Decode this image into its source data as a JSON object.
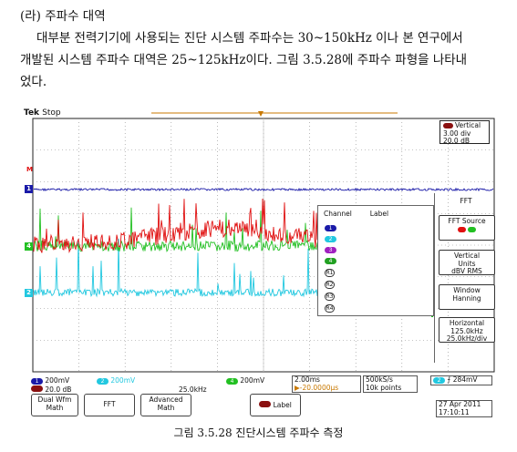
{
  "document": {
    "heading": "(라) 주파수 대역",
    "para1": "대부분 전력기기에 사용되는 진단 시스템 주파수는 30~150kHz 이나 본 연구에서",
    "para2": "개발된 시스템 주파수 대역은 25~125kHz이다. 그림 3.5.28에 주파수 파형을 나타내",
    "para3": "었다.",
    "caption": "그림 3.5.28 진단시스템 주파수 측정"
  },
  "scope": {
    "brand": "Tek",
    "state": "Stop",
    "vertical_box": {
      "title": "Vertical",
      "line1": "3.00 div",
      "line2": "20.0 dB"
    },
    "markers": {
      "m": "M",
      "ch1": "1",
      "ch4": "4",
      "ch2": "2"
    },
    "label_panel": {
      "col1": "Channel",
      "col2": "Label",
      "rows": [
        "1",
        "2",
        "3",
        "4",
        "R1",
        "R2",
        "R3",
        "R4"
      ]
    },
    "fft_menu": {
      "title": "FFT",
      "buttons": [
        {
          "top": "FFT Source",
          "sub": ""
        },
        {
          "top": "Vertical",
          "sub": "Units",
          "sub2": "dBV RMS"
        },
        {
          "top": "Window",
          "sub": "Hanning",
          "sub2": ""
        },
        {
          "top": "Horizontal",
          "sub": "125.0kHz",
          "sub2": "25.0kHz/div"
        }
      ]
    },
    "status": {
      "ch1": "200mV",
      "ch2": "200mV",
      "ch4": "200mV",
      "math_scale": "20.0 dB",
      "math_freq": "25.0kHz",
      "timebase": "2.00ms",
      "trigger_pos": "▶-20.0000µs",
      "sample_rate": "500kS/s",
      "points": "10k points",
      "trig_ch": "2",
      "trig_level": "284mV",
      "date": "27 Apr 2011",
      "time": "17:10:11"
    },
    "softkeys": {
      "dual": "Dual Wfm",
      "dual_sub": "Math",
      "fft": "FFT",
      "adv": "Advanced",
      "adv_sub": "Math",
      "label": "Label"
    },
    "colors": {
      "ch1": "#1a1aa8",
      "ch2": "#22c8e0",
      "ch3": "#a020c0",
      "ch4": "#22c022",
      "math": "#e01010",
      "grid": "#8a8a8a"
    }
  }
}
